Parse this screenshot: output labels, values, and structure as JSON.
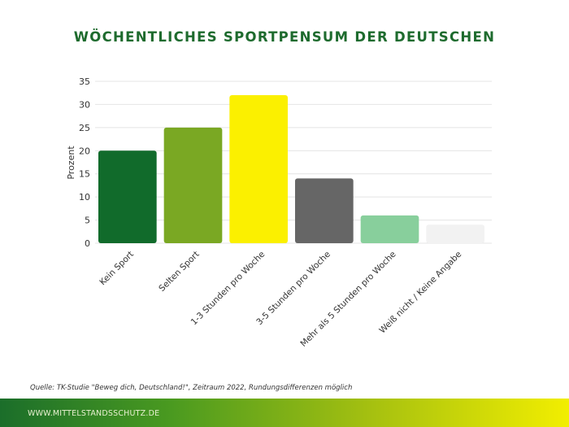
{
  "chart_data": {
    "type": "bar",
    "title": "WÖCHENTLICHES SPORTPENSUM DER DEUTSCHEN",
    "xlabel": "",
    "ylabel": "Prozent",
    "ylim": [
      0,
      35
    ],
    "yticks": [
      0,
      5,
      10,
      15,
      20,
      25,
      30,
      35
    ],
    "grid": true,
    "categories": [
      "Kein Sport",
      "Selten Sport",
      "1-3 Stunden pro Woche",
      "3-5 Stunden pro Woche",
      "Mehr als 5 Stunden pro Woche",
      "Weiß nicht / Keine Angabe"
    ],
    "values": [
      20,
      25,
      32,
      14,
      6,
      4
    ],
    "colors": [
      "#116b2b",
      "#7aa823",
      "#fbf000",
      "#666666",
      "#88cf9c",
      "#f2f2f2"
    ]
  },
  "source": "Quelle: TK-Studie \"Beweg dich, Deutschland!\", Zeitraum 2022, Rundungsdifferenzen möglich",
  "footer": {
    "url": "WWW.MITTELSTANDSSCHUTZ.DE"
  }
}
